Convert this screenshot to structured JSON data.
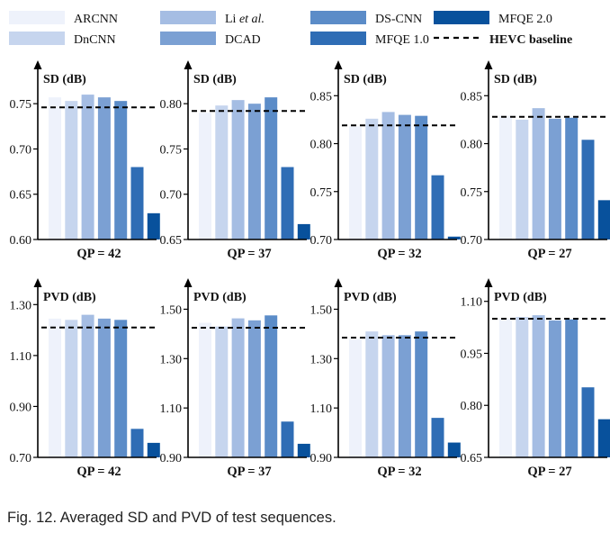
{
  "legend_label_parts": [
    {
      "pre": "ARCNN",
      "em": "",
      "post": ""
    },
    {
      "pre": "Li ",
      "em": "et al.",
      "post": ""
    },
    {
      "pre": "DS-CNN",
      "em": "",
      "post": ""
    },
    {
      "pre": "MFQE 2.0",
      "em": "",
      "post": ""
    },
    {
      "pre": "DnCNN",
      "em": "",
      "post": ""
    },
    {
      "pre": "DCAD",
      "em": "",
      "post": ""
    },
    {
      "pre": "MFQE 1.0",
      "em": "",
      "post": ""
    },
    {
      "pre": "HEVC baseline",
      "em": "",
      "post": ""
    }
  ],
  "colors": {
    "ARCNN": "#eef2fb",
    "DnCNN": "#c6d5ee",
    "Li et al.": "#a5bde3",
    "DCAD": "#7ba0d3",
    "DS-CNN": "#5b8cc8",
    "MFQE 1.0": "#2f6db5",
    "MFQE 2.0": "#08519c",
    "HEVC baseline": "#000000"
  },
  "caption": "Fig. 12. Averaged SD and PVD of test sequences.",
  "chart_data": [
    {
      "type": "bar",
      "title": "SD (dB)",
      "xlabel": "QP = 42",
      "ylim": [
        0.6,
        0.78
      ],
      "ticks": [
        "0.60",
        "0.65",
        "0.70",
        "0.75"
      ],
      "tick_values": [
        0.6,
        0.65,
        0.7,
        0.75
      ],
      "series": [
        {
          "name": "ARCNN",
          "values": [
            0.757
          ]
        },
        {
          "name": "DnCNN",
          "values": [
            0.753
          ]
        },
        {
          "name": "Li et al.",
          "values": [
            0.76
          ]
        },
        {
          "name": "DCAD",
          "values": [
            0.757
          ]
        },
        {
          "name": "DS-CNN",
          "values": [
            0.753
          ]
        },
        {
          "name": "MFQE 1.0",
          "values": [
            0.68
          ]
        },
        {
          "name": "MFQE 2.0",
          "values": [
            0.629
          ]
        }
      ],
      "baseline": 0.746
    },
    {
      "type": "bar",
      "title": "SD (dB)",
      "xlabel": "QP = 37",
      "ylim": [
        0.65,
        0.83
      ],
      "ticks": [
        "0.65",
        "0.70",
        "0.75",
        "0.80"
      ],
      "tick_values": [
        0.65,
        0.7,
        0.75,
        0.8
      ],
      "series": [
        {
          "name": "ARCNN",
          "values": [
            0.79
          ]
        },
        {
          "name": "DnCNN",
          "values": [
            0.798
          ]
        },
        {
          "name": "Li et al.",
          "values": [
            0.804
          ]
        },
        {
          "name": "DCAD",
          "values": [
            0.8
          ]
        },
        {
          "name": "DS-CNN",
          "values": [
            0.807
          ]
        },
        {
          "name": "MFQE 1.0",
          "values": [
            0.73
          ]
        },
        {
          "name": "MFQE 2.0",
          "values": [
            0.667
          ]
        }
      ],
      "baseline": 0.792
    },
    {
      "type": "bar",
      "title": "SD (dB)",
      "xlabel": "QP = 32",
      "ylim": [
        0.7,
        0.87
      ],
      "ticks": [
        "0.70",
        "0.75",
        "0.80",
        "0.85"
      ],
      "tick_values": [
        0.7,
        0.75,
        0.8,
        0.85
      ],
      "series": [
        {
          "name": "ARCNN",
          "values": [
            0.818
          ]
        },
        {
          "name": "DnCNN",
          "values": [
            0.826
          ]
        },
        {
          "name": "Li et al.",
          "values": [
            0.833
          ]
        },
        {
          "name": "DCAD",
          "values": [
            0.83
          ]
        },
        {
          "name": "DS-CNN",
          "values": [
            0.829
          ]
        },
        {
          "name": "MFQE 1.0",
          "values": [
            0.767
          ]
        },
        {
          "name": "MFQE 2.0",
          "values": [
            0.703
          ]
        }
      ],
      "baseline": 0.819
    },
    {
      "type": "bar",
      "title": "SD (dB)",
      "xlabel": "QP = 27",
      "ylim": [
        0.7,
        0.87
      ],
      "ticks": [
        "0.70",
        "0.75",
        "0.80",
        "0.85"
      ],
      "tick_values": [
        0.7,
        0.75,
        0.8,
        0.85
      ],
      "series": [
        {
          "name": "ARCNN",
          "values": [
            0.829
          ]
        },
        {
          "name": "DnCNN",
          "values": [
            0.825
          ]
        },
        {
          "name": "Li et al.",
          "values": [
            0.837
          ]
        },
        {
          "name": "DCAD",
          "values": [
            0.826
          ]
        },
        {
          "name": "DS-CNN",
          "values": [
            0.827
          ]
        },
        {
          "name": "MFQE 1.0",
          "values": [
            0.804
          ]
        },
        {
          "name": "MFQE 2.0",
          "values": [
            0.741
          ]
        }
      ],
      "baseline": 0.828
    },
    {
      "type": "bar",
      "title": "PVD (dB)",
      "xlabel": "QP = 42",
      "ylim": [
        0.7,
        1.34
      ],
      "ticks": [
        "0.70",
        "0.90",
        "1.10",
        "1.30"
      ],
      "tick_values": [
        0.7,
        0.9,
        1.1,
        1.3
      ],
      "series": [
        {
          "name": "ARCNN",
          "values": [
            1.245
          ]
        },
        {
          "name": "DnCNN",
          "values": [
            1.24
          ]
        },
        {
          "name": "Li et al.",
          "values": [
            1.26
          ]
        },
        {
          "name": "DCAD",
          "values": [
            1.245
          ]
        },
        {
          "name": "DS-CNN",
          "values": [
            1.24
          ]
        },
        {
          "name": "MFQE 1.0",
          "values": [
            0.812
          ]
        },
        {
          "name": "MFQE 2.0",
          "values": [
            0.757
          ]
        }
      ],
      "baseline": 1.21
    },
    {
      "type": "bar",
      "title": "PVD (dB)",
      "xlabel": "QP = 37",
      "ylim": [
        0.9,
        1.56
      ],
      "ticks": [
        "0.90",
        "1.10",
        "1.30",
        "1.50"
      ],
      "tick_values": [
        0.9,
        1.1,
        1.3,
        1.5
      ],
      "series": [
        {
          "name": "ARCNN",
          "values": [
            1.445
          ]
        },
        {
          "name": "DnCNN",
          "values": [
            1.43
          ]
        },
        {
          "name": "Li et al.",
          "values": [
            1.463
          ]
        },
        {
          "name": "DCAD",
          "values": [
            1.455
          ]
        },
        {
          "name": "DS-CNN",
          "values": [
            1.475
          ]
        },
        {
          "name": "MFQE 1.0",
          "values": [
            1.045
          ]
        },
        {
          "name": "MFQE 2.0",
          "values": [
            0.955
          ]
        }
      ],
      "baseline": 1.425
    },
    {
      "type": "bar",
      "title": "PVD (dB)",
      "xlabel": "QP = 32",
      "ylim": [
        0.9,
        1.56
      ],
      "ticks": [
        "0.90",
        "1.10",
        "1.30",
        "1.50"
      ],
      "tick_values": [
        0.9,
        1.1,
        1.3,
        1.5
      ],
      "series": [
        {
          "name": "ARCNN",
          "values": [
            1.38
          ]
        },
        {
          "name": "DnCNN",
          "values": [
            1.41
          ]
        },
        {
          "name": "Li et al.",
          "values": [
            1.395
          ]
        },
        {
          "name": "DCAD",
          "values": [
            1.395
          ]
        },
        {
          "name": "DS-CNN",
          "values": [
            1.41
          ]
        },
        {
          "name": "MFQE 1.0",
          "values": [
            1.06
          ]
        },
        {
          "name": "MFQE 2.0",
          "values": [
            0.96
          ]
        }
      ],
      "baseline": 1.385
    },
    {
      "type": "bar",
      "title": "PVD (dB)",
      "xlabel": "QP = 27",
      "ylim": [
        0.65,
        1.12
      ],
      "ticks": [
        "0.65",
        "0.80",
        "0.95",
        "1.10"
      ],
      "tick_values": [
        0.65,
        0.8,
        0.95,
        1.1
      ],
      "series": [
        {
          "name": "ARCNN",
          "values": [
            1.05
          ]
        },
        {
          "name": "DnCNN",
          "values": [
            1.055
          ]
        },
        {
          "name": "Li et al.",
          "values": [
            1.06
          ]
        },
        {
          "name": "DCAD",
          "values": [
            1.045
          ]
        },
        {
          "name": "DS-CNN",
          "values": [
            1.048
          ]
        },
        {
          "name": "MFQE 1.0",
          "values": [
            0.852
          ]
        },
        {
          "name": "MFQE 2.0",
          "values": [
            0.76
          ]
        }
      ],
      "baseline": 1.05
    }
  ]
}
